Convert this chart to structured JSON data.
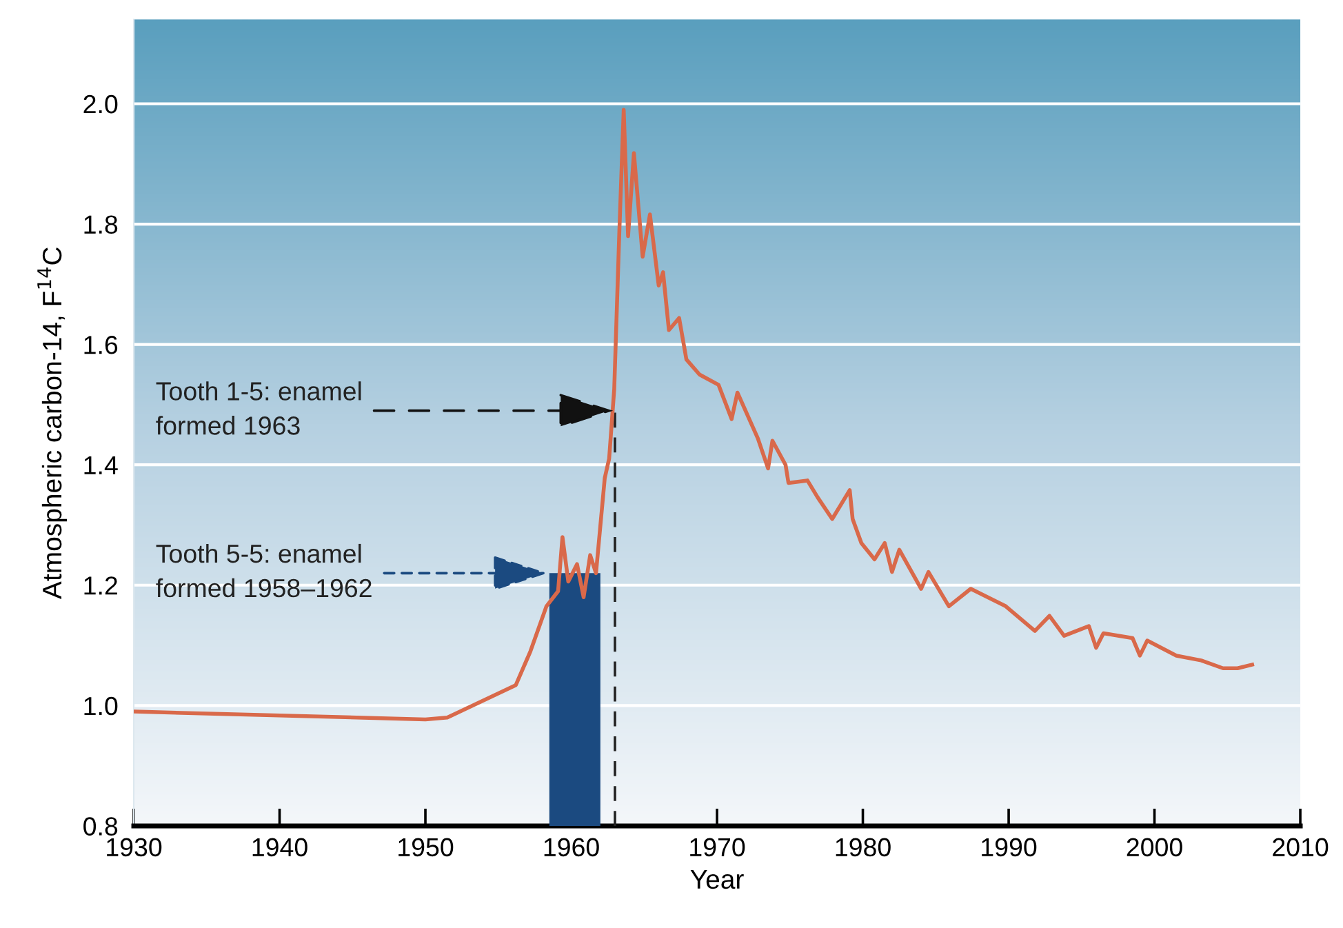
{
  "chart_data": {
    "type": "line",
    "xlabel": "Year",
    "ylabel": "Atmospheric carbon-14, F$^{14}$C",
    "xlim": [
      1930,
      2010
    ],
    "xticks": [
      1930,
      1940,
      1950,
      1960,
      1970,
      1980,
      1990,
      2000,
      2010
    ],
    "ylim": [
      0.8,
      2.14
    ],
    "yticks": [
      0.8,
      {
        "value": 1,
        "label": "1.0"
      },
      1.2,
      1.4,
      1.6,
      1.8,
      {
        "value": 2,
        "label": "2.0"
      }
    ],
    "grid": "y",
    "line_style": "solid",
    "series": [
      {
        "color": "#d9694a",
        "x": [
          1930,
          1950,
          1951.5,
          1956.2,
          1957.2,
          1958.3,
          1959.1,
          1959.4,
          1959.8,
          1960.4,
          1960.85,
          1961.3,
          1961.7,
          1962.3,
          1962.6,
          1962.95,
          1963.3,
          1963.6,
          1963.9,
          1964.3,
          1964.9,
          1965.4,
          1966.0,
          1966.3,
          1966.7,
          1967.4,
          1967.9,
          1968.8,
          1970.1,
          1971.0,
          1971.4,
          1972.8,
          1973.5,
          1973.8,
          1974.7,
          1974.9,
          1976.2,
          1976.9,
          1977.9,
          1979.1,
          1979.3,
          1979.9,
          1980.8,
          1981.5,
          1982.0,
          1982.5,
          1984.0,
          1984.5,
          1985.9,
          1987.4,
          1989.8,
          1991.8,
          1992.8,
          1993.8,
          1995.5,
          1996.0,
          1996.5,
          1998.5,
          1999.0,
          1999.5,
          2001.5,
          2003.2,
          2004.7,
          2005.7,
          2006.7
        ],
        "values": [
          0.99,
          0.977,
          0.98,
          1.034,
          1.09,
          1.165,
          1.19,
          1.28,
          1.206,
          1.235,
          1.18,
          1.25,
          1.22,
          1.378,
          1.41,
          1.526,
          1.787,
          1.99,
          1.78,
          1.918,
          1.746,
          1.816,
          1.698,
          1.72,
          1.624,
          1.644,
          1.575,
          1.55,
          1.533,
          1.476,
          1.52,
          1.444,
          1.394,
          1.44,
          1.4,
          1.37,
          1.374,
          1.346,
          1.31,
          1.358,
          1.31,
          1.27,
          1.243,
          1.27,
          1.222,
          1.259,
          1.194,
          1.222,
          1.165,
          1.194,
          1.165,
          1.124,
          1.149,
          1.116,
          1.132,
          1.096,
          1.12,
          1.112,
          1.083,
          1.108,
          1.083,
          1.075,
          1.062,
          1.062,
          1.068
        ]
      }
    ],
    "ref_lines": [
      {
        "axis": "x",
        "value": 1963,
        "color": "#222222",
        "line_style": "dashed"
      }
    ],
    "bands": [
      {
        "axis": "x",
        "from": 1958.5,
        "to": 1962,
        "color": "#1b4a80"
      }
    ],
    "annotations": [
      {
        "text": "Tooth 1-5: enamel\nformed 1963",
        "x": 1963,
        "y": 1.49
      },
      {
        "text": "Tooth 5-5: enamel\nformed 1958–1962",
        "x": 1958.5,
        "y": 1.22
      }
    ]
  }
}
